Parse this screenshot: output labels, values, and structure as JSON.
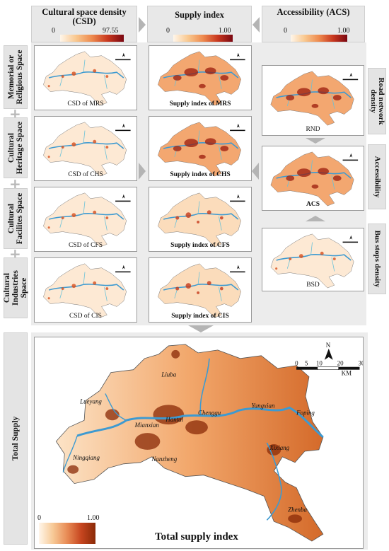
{
  "headers": {
    "csd": {
      "title": "Cultural space density (CSD)",
      "min": "0",
      "max": "97.55"
    },
    "supply": {
      "title": "Supply index",
      "min": "0",
      "max": "1.00"
    },
    "acs": {
      "title": "Accessibility (ACS)",
      "min": "0",
      "max": "1.00"
    }
  },
  "rows": [
    {
      "label": "Memorial or Religious Space",
      "csd_caption": "CSD of MRS",
      "supply_caption": "Supply index of MRS"
    },
    {
      "label": "Cultural Heritage Space",
      "csd_caption": "CSD of CHS",
      "supply_caption": "Supply index of CHS"
    },
    {
      "label": "Cultural Facilites Space",
      "csd_caption": "CSD of CFS",
      "supply_caption": "Supply index of CFS"
    },
    {
      "label": "Cultural Industries Space",
      "csd_caption": "CSD of CIS",
      "supply_caption": "Supply index of CIS"
    }
  ],
  "right_column": [
    {
      "caption": "RND",
      "side_label": "Road network density"
    },
    {
      "caption": "ACS",
      "side_label": "Accessibility"
    },
    {
      "caption": "BSD",
      "side_label": "Bus stops density"
    }
  ],
  "total": {
    "row_label": "Total Supply",
    "title": "Total supply index",
    "legend_min": "0",
    "legend_max": "1.00",
    "north": "N",
    "scale_ticks": [
      "0",
      "5",
      "10",
      "20",
      "30"
    ],
    "scale_unit": "KM",
    "places": [
      "Liuba",
      "Lueyang",
      "Foping",
      "Mianxian",
      "Hantai",
      "Chenggu",
      "Yangxian",
      "Ningqiang",
      "Nanzheng",
      "Xixiang",
      "Zhenba"
    ]
  },
  "colors": {
    "river": "#3d9ad1",
    "dark_red": "#7a0711",
    "orange": "#ee8a4e",
    "panel_bg": "#ececec"
  }
}
